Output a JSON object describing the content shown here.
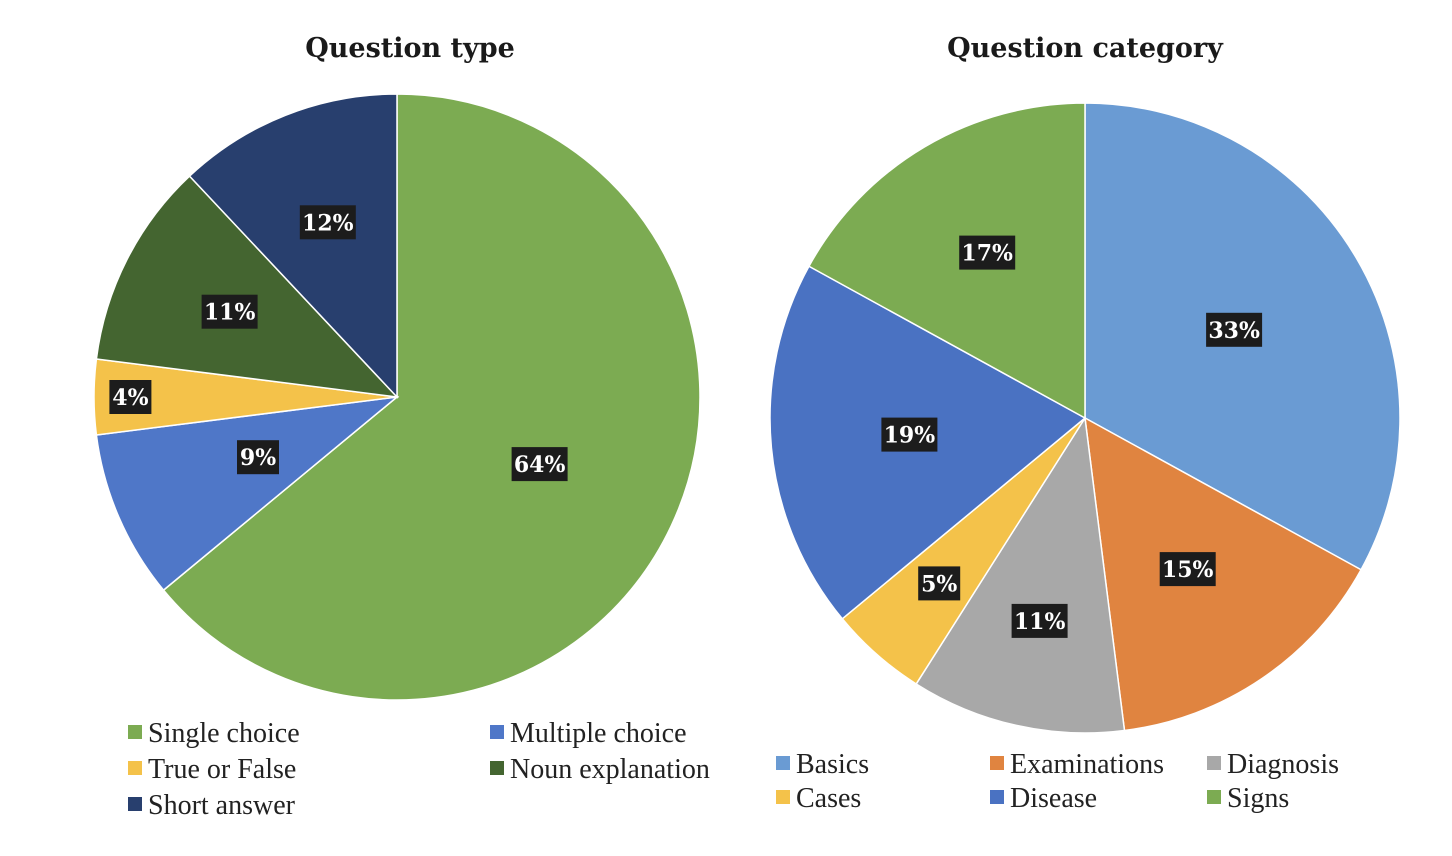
{
  "chart_data": [
    {
      "type": "pie",
      "title": "Question type",
      "slices": [
        {
          "name": "Single choice",
          "value": 64,
          "label": "64%",
          "color": "#7cab52"
        },
        {
          "name": "Multiple choice",
          "value": 9,
          "label": "9%",
          "color": "#4f77c8"
        },
        {
          "name": "True or False",
          "value": 4,
          "label": "4%",
          "color": "#f4c24a"
        },
        {
          "name": "Noun explanation",
          "value": 11,
          "label": "11%",
          "color": "#446530"
        },
        {
          "name": "Short answer",
          "value": 12,
          "label": "12%",
          "color": "#283f6e"
        }
      ],
      "start_angle_deg": 0,
      "direction": "clockwise",
      "legend_position": "bottom",
      "legend": [
        [
          "Single choice",
          "Multiple choice"
        ],
        [
          "True or False",
          "Noun explanation"
        ],
        [
          "Short answer"
        ]
      ]
    },
    {
      "type": "pie",
      "title": "Question category",
      "slices": [
        {
          "name": "Basics",
          "value": 33,
          "label": "33%",
          "color": "#6a9bd3"
        },
        {
          "name": "Examinations",
          "value": 15,
          "label": "15%",
          "color": "#e08440"
        },
        {
          "name": "Diagnosis",
          "value": 11,
          "label": "11%",
          "color": "#a8a8a8"
        },
        {
          "name": "Cases",
          "value": 5,
          "label": "5%",
          "color": "#f4c24a"
        },
        {
          "name": "Disease",
          "value": 19,
          "label": "19%",
          "color": "#4a72c2"
        },
        {
          "name": "Signs",
          "value": 17,
          "label": "17%",
          "color": "#7cab52"
        }
      ],
      "start_angle_deg": 0,
      "direction": "clockwise",
      "legend_position": "bottom",
      "legend": [
        [
          "Basics",
          "Examinations",
          "Diagnosis"
        ],
        [
          "Cases",
          "Disease",
          "Signs"
        ]
      ]
    }
  ]
}
